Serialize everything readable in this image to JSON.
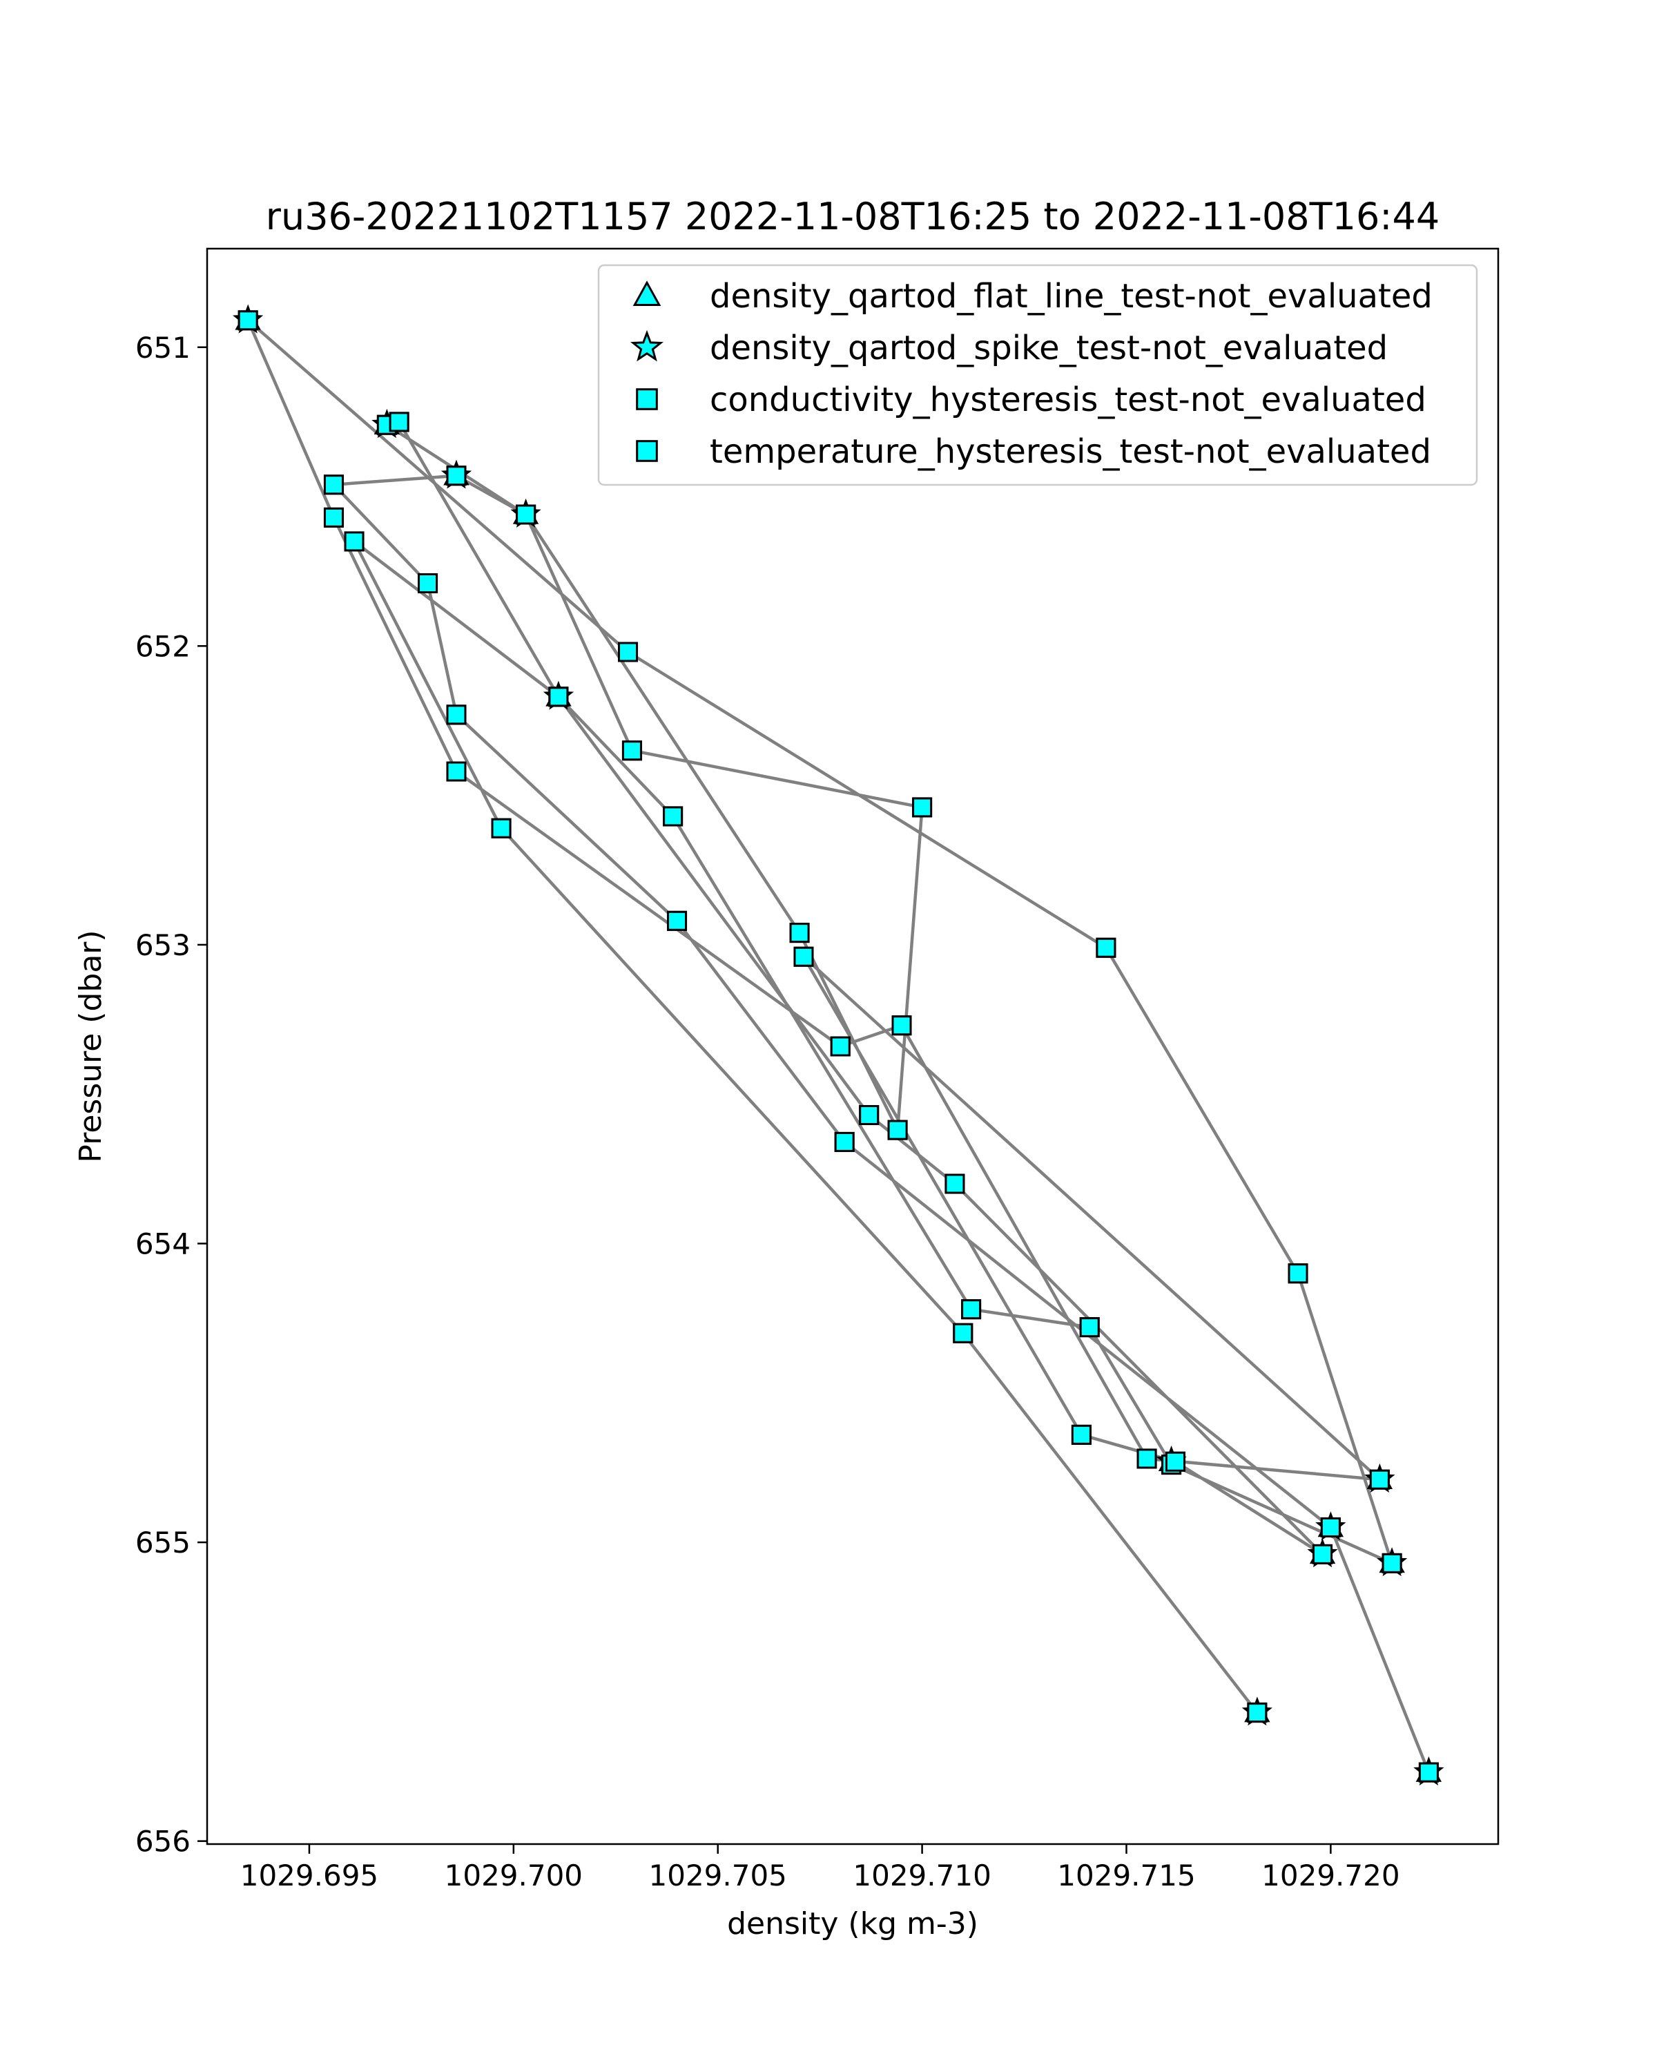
{
  "chart_data": {
    "type": "line",
    "title": "ru36-20221102T1157 2022-11-08T16:25 to 2022-11-08T16:44",
    "xlabel": "density (kg m-3)",
    "ylabel": "Pressure (dbar)",
    "xlim": [
      1029.6925,
      1029.7241
    ],
    "ylim": [
      656.01,
      650.67
    ],
    "y_inverted": true,
    "grid": false,
    "legend_position": "top-right",
    "x_ticks": [
      {
        "value": 1029.695,
        "label": "1029.695"
      },
      {
        "value": 1029.7,
        "label": "1029.700"
      },
      {
        "value": 1029.705,
        "label": "1029.705"
      },
      {
        "value": 1029.71,
        "label": "1029.710"
      },
      {
        "value": 1029.715,
        "label": "1029.715"
      },
      {
        "value": 1029.72,
        "label": "1029.720"
      }
    ],
    "y_ticks": [
      {
        "value": 651,
        "label": "651"
      },
      {
        "value": 652,
        "label": "652"
      },
      {
        "value": 653,
        "label": "653"
      },
      {
        "value": 654,
        "label": "654"
      },
      {
        "value": 655,
        "label": "655"
      },
      {
        "value": 656,
        "label": "656"
      }
    ],
    "line_color": "#808080",
    "marker_fill": "#00ffff",
    "marker_edge": "#000000",
    "profile": {
      "x": [
        1029.7224,
        1029.72,
        1029.7081,
        1029.704,
        1029.6986,
        1029.6979,
        1029.6956,
        1029.6986,
        1029.7003,
        1029.7029,
        1029.71,
        1029.7094,
        1029.707,
        1029.7003,
        1029.6969,
        1029.6972,
        1029.7011,
        1029.7039,
        1029.7112,
        1029.7141,
        1029.7161,
        1029.7215,
        1029.7192,
        1029.7145,
        1029.7028,
        1029.6935,
        1029.6956,
        1029.6986,
        1029.708,
        1029.7095,
        1029.7155,
        1029.7212,
        1029.7071,
        1029.7139,
        1029.7162,
        1029.7198,
        1029.7108,
        1029.7087,
        1029.7011,
        1029.6961,
        1029.6997,
        1029.711,
        1029.7182
      ],
      "y": [
        655.77,
        654.95,
        653.66,
        652.92,
        652.23,
        651.79,
        651.46,
        651.43,
        651.56,
        652.35,
        652.54,
        653.62,
        652.96,
        651.56,
        651.26,
        651.25,
        652.17,
        652.57,
        654.22,
        654.28,
        654.74,
        655.07,
        654.1,
        653.01,
        652.02,
        650.91,
        651.57,
        652.42,
        653.34,
        653.27,
        654.72,
        654.79,
        653.04,
        654.64,
        654.73,
        655.04,
        653.8,
        653.57,
        652.17,
        651.65,
        652.61,
        654.3,
        655.57
      ]
    },
    "series": [
      {
        "name": "density_qartod_flat_line_test-not_evaluated",
        "marker": "triangle",
        "x": [
          1029.7224,
          1029.72,
          1029.6935,
          1029.6969,
          1029.6986,
          1029.7003,
          1029.7011,
          1029.7161,
          1029.7215,
          1029.7212,
          1029.7198,
          1029.7182
        ],
        "y": [
          655.77,
          654.95,
          650.91,
          651.26,
          651.43,
          651.56,
          652.17,
          654.73,
          655.07,
          654.79,
          655.04,
          655.57
        ]
      },
      {
        "name": "density_qartod_spike_test-not_evaluated",
        "marker": "star",
        "x": [
          1029.7224,
          1029.72,
          1029.6935,
          1029.6969,
          1029.6986,
          1029.7003,
          1029.7011,
          1029.7161,
          1029.7215,
          1029.7212,
          1029.7198,
          1029.7182
        ],
        "y": [
          655.77,
          654.95,
          650.91,
          651.26,
          651.43,
          651.56,
          652.17,
          654.73,
          655.07,
          654.79,
          655.04,
          655.57
        ]
      },
      {
        "name": "conductivity_hysteresis_test-not_evaluated",
        "marker": "square",
        "x": [
          1029.7224,
          1029.72,
          1029.7081,
          1029.704,
          1029.6986,
          1029.6979,
          1029.6956,
          1029.6986,
          1029.7003,
          1029.7029,
          1029.71,
          1029.7094,
          1029.707,
          1029.7003,
          1029.6969,
          1029.6972,
          1029.7011,
          1029.7039,
          1029.7112,
          1029.7141,
          1029.7161,
          1029.7215,
          1029.7192,
          1029.7145,
          1029.7028,
          1029.6935,
          1029.6956,
          1029.6986,
          1029.708,
          1029.7095,
          1029.7155,
          1029.7212,
          1029.7071,
          1029.7139,
          1029.7162,
          1029.7198,
          1029.7108,
          1029.7087,
          1029.7011,
          1029.6961,
          1029.6997,
          1029.711,
          1029.7182
        ],
        "y": [
          655.77,
          654.95,
          653.66,
          652.92,
          652.23,
          651.79,
          651.46,
          651.43,
          651.56,
          652.35,
          652.54,
          653.62,
          652.96,
          651.56,
          651.26,
          651.25,
          652.17,
          652.57,
          654.22,
          654.28,
          654.74,
          655.07,
          654.1,
          653.01,
          652.02,
          650.91,
          651.57,
          652.42,
          653.34,
          653.27,
          654.72,
          654.79,
          653.04,
          654.64,
          654.73,
          655.04,
          653.8,
          653.57,
          652.17,
          651.65,
          652.61,
          654.3,
          655.57
        ]
      },
      {
        "name": "temperature_hysteresis_test-not_evaluated",
        "marker": "square",
        "x": [
          1029.7224,
          1029.72,
          1029.7081,
          1029.704,
          1029.6986,
          1029.6979,
          1029.6956,
          1029.6986,
          1029.7003,
          1029.7029,
          1029.71,
          1029.7094,
          1029.707,
          1029.7003,
          1029.6969,
          1029.6972,
          1029.7011,
          1029.7039,
          1029.7112,
          1029.7141,
          1029.7161,
          1029.7215,
          1029.7192,
          1029.7145,
          1029.7028,
          1029.6935,
          1029.6956,
          1029.6986,
          1029.708,
          1029.7095,
          1029.7155,
          1029.7212,
          1029.7071,
          1029.7139,
          1029.7162,
          1029.7198,
          1029.7108,
          1029.7087,
          1029.7011,
          1029.6961,
          1029.6997,
          1029.711,
          1029.7182
        ],
        "y": [
          655.77,
          654.95,
          653.66,
          652.92,
          652.23,
          651.79,
          651.46,
          651.43,
          651.56,
          652.35,
          652.54,
          653.62,
          652.96,
          651.56,
          651.26,
          651.25,
          652.17,
          652.57,
          654.22,
          654.28,
          654.74,
          655.07,
          654.1,
          653.01,
          652.02,
          650.91,
          651.57,
          652.42,
          653.34,
          653.27,
          654.72,
          654.79,
          653.04,
          654.64,
          654.73,
          655.04,
          653.8,
          653.57,
          652.17,
          651.65,
          652.61,
          654.3,
          655.57
        ]
      }
    ]
  }
}
